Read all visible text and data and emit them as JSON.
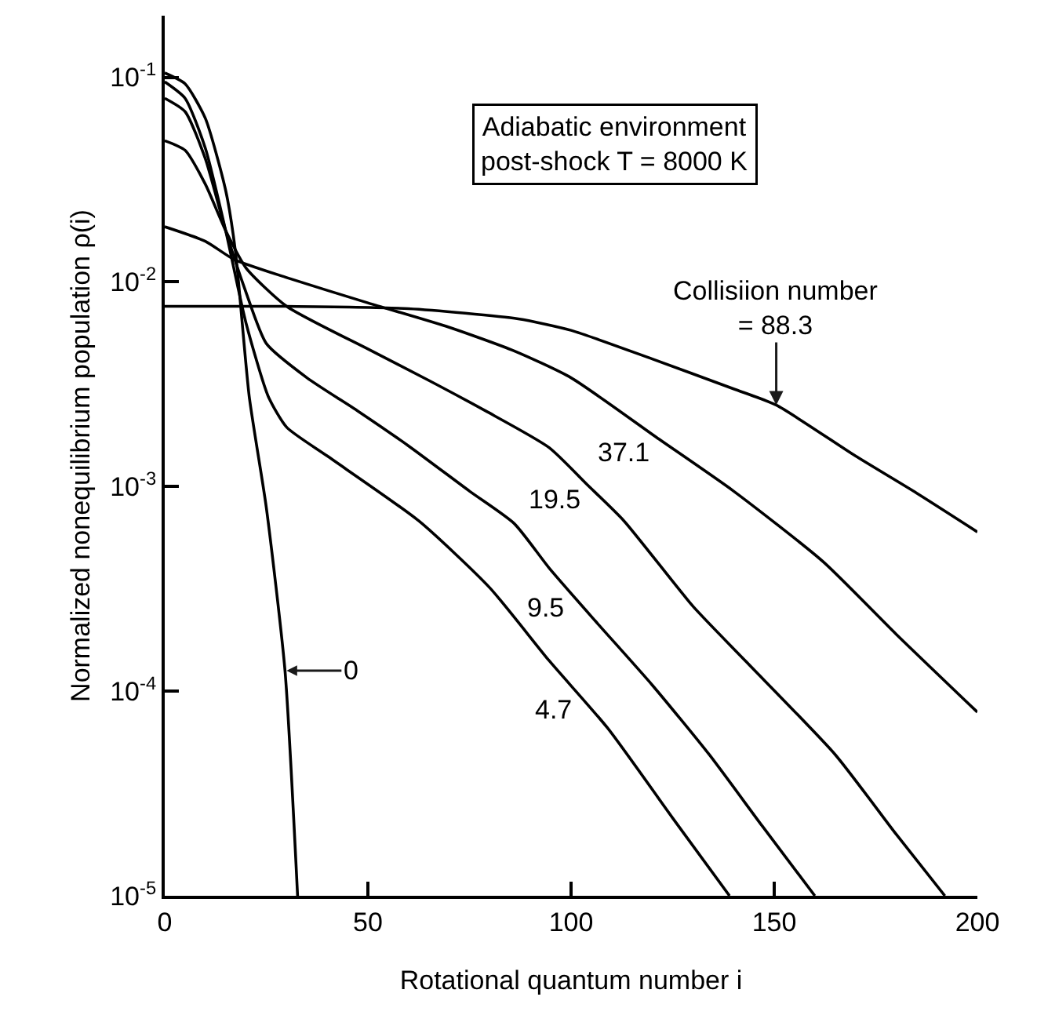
{
  "chart_data": {
    "type": "line",
    "xlabel": "Rotational quantum number i",
    "ylabel": "Normalized nonequilibrium population ρ(i)",
    "log": "y",
    "xlim": [
      0,
      200
    ],
    "ylim": [
      1e-05,
      0.2
    ],
    "xticks": [
      0,
      50,
      100,
      150,
      200
    ],
    "yticks": [
      {
        "value": 0.1,
        "label": "10$^{-1}$"
      },
      {
        "value": 0.01,
        "label": "10$^{-2}$"
      },
      {
        "value": 0.001,
        "label": "10$^{-3}$"
      },
      {
        "value": 0.0001,
        "label": "10$^{-4}$"
      },
      {
        "value": 1e-05,
        "label": "10$^{-5}$"
      }
    ],
    "marker": "none",
    "line_style": "solid",
    "series": [
      {
        "color": "#000000",
        "x": [
          0,
          5,
          10,
          15,
          17.4,
          20.8,
          25,
          29.6,
          32.7
        ],
        "values": [
          0.105,
          0.093,
          0.063,
          0.028,
          0.0141,
          0.00275,
          0.00079,
          0.000126,
          1e-05
        ]
      },
      {
        "color": "#000000",
        "x": [
          0,
          5,
          10,
          15,
          20,
          25.5,
          30,
          40,
          62.5,
          80,
          94.6,
          109,
          125,
          139
        ],
        "values": [
          0.095,
          0.079,
          0.045,
          0.0178,
          0.0063,
          0.00275,
          0.00195,
          0.00141,
          0.00068,
          0.00032,
          0.000141,
          6.6e-05,
          2.4e-05,
          1e-05
        ]
      },
      {
        "color": "#000000",
        "x": [
          0,
          5,
          10,
          15,
          20,
          25,
          35,
          47.5,
          60,
          75,
          86,
          94.6,
          106,
          120,
          134,
          147,
          160
        ],
        "values": [
          0.079,
          0.068,
          0.04,
          0.0178,
          0.0089,
          0.005,
          0.0034,
          0.00234,
          0.00158,
          0.00095,
          0.00066,
          0.0004,
          0.00022,
          0.000107,
          4.9e-05,
          2.2e-05,
          1e-05
        ]
      },
      {
        "color": "#000000",
        "x": [
          0,
          5,
          10,
          15,
          20,
          30,
          50,
          65,
          79,
          94.6,
          104,
          113,
          130,
          143,
          165,
          180,
          192
        ],
        "values": [
          0.049,
          0.044,
          0.03,
          0.0178,
          0.0117,
          0.0076,
          0.0047,
          0.0033,
          0.00234,
          0.00155,
          0.00102,
          0.00068,
          0.00026,
          0.00014,
          4.9e-05,
          2e-05,
          1e-05
        ]
      },
      {
        "color": "#000000",
        "x": [
          0,
          10,
          17,
          30,
          50,
          70,
          86,
          100,
          121,
          140,
          162,
          180,
          200
        ],
        "values": [
          0.0186,
          0.0158,
          0.0129,
          0.0105,
          0.0079,
          0.006,
          0.0046,
          0.0034,
          0.00174,
          0.00095,
          0.00043,
          0.00019,
          7.9e-05
        ]
      },
      {
        "color": "#000000",
        "x": [
          0,
          30,
          60,
          87,
          100,
          120,
          140,
          150.5,
          170,
          185,
          200
        ],
        "values": [
          0.0076,
          0.0076,
          0.0074,
          0.0066,
          0.0058,
          0.0042,
          0.003,
          0.0025,
          0.00141,
          0.00093,
          0.0006
        ]
      }
    ],
    "annotations": [
      "Adiabatic environment\npost-shock T = 8000 K",
      {
        "text": "Collisiion number\n= 88.3",
        "x": 150.5,
        "y": 0.0025
      },
      {
        "text": "0",
        "x": 29.6,
        "y": 0.000126
      },
      {
        "text": "37.1",
        "x": 121,
        "y": 0.00174
      },
      {
        "text": "19.5",
        "x": 104,
        "y": 0.00102
      },
      {
        "text": "9.5",
        "x": 100,
        "y": 0.0003
      },
      {
        "text": "4.7",
        "x": 102,
        "y": 9.5e-05
      }
    ]
  }
}
